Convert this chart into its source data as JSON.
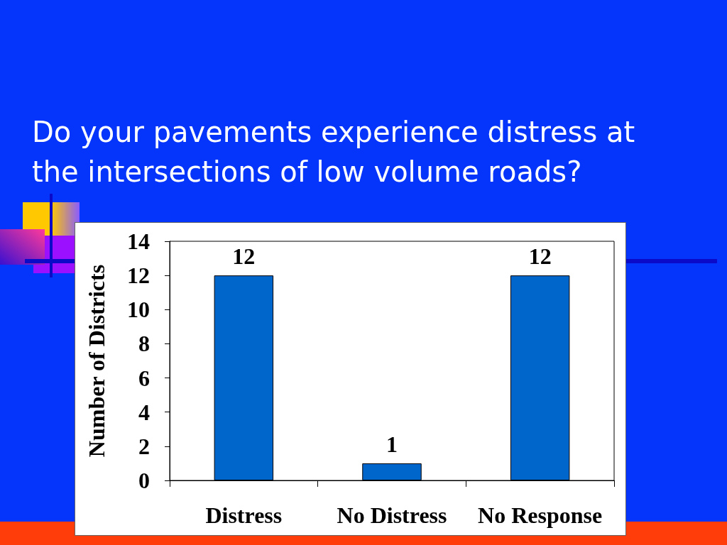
{
  "chart_data": {
    "type": "bar",
    "title": "Do your pavements experience distress at the intersections of low volume roads?",
    "ylabel": "Number of Districts",
    "categories": [
      "Distress",
      "No Distress",
      "No Response"
    ],
    "values": [
      12,
      1,
      12
    ],
    "color": "#0066cc",
    "ylim": [
      0,
      14
    ],
    "yticks": [
      0,
      2,
      4,
      6,
      8,
      10,
      12,
      14
    ],
    "data_labels": true
  }
}
